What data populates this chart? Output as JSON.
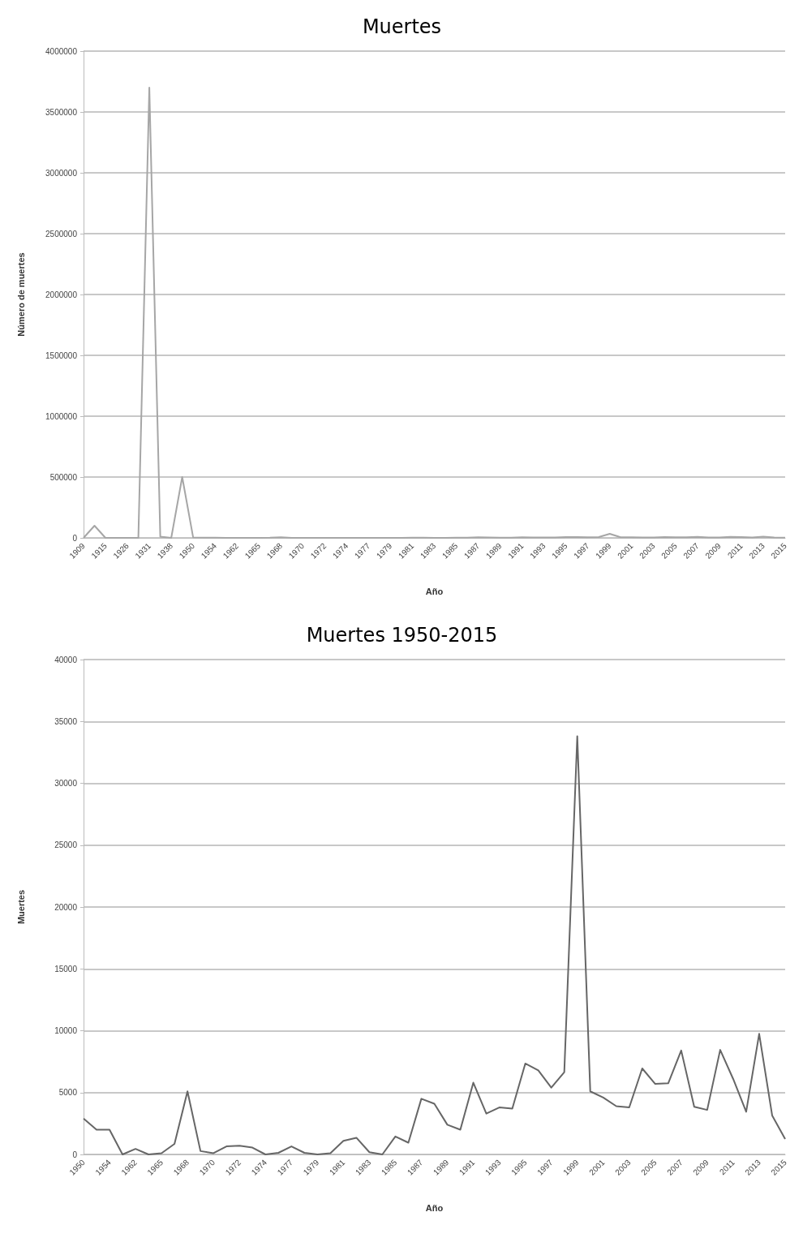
{
  "chart_data": [
    {
      "type": "line",
      "title": "Muertes",
      "xlabel": "Año",
      "ylabel": "Número de muertes",
      "categories": [
        "1909",
        null,
        "1915",
        null,
        "1926",
        null,
        "1931",
        null,
        "1938",
        null,
        "1950",
        null,
        "1954",
        null,
        "1962",
        null,
        "1965",
        null,
        "1968",
        null,
        "1970",
        null,
        "1972",
        null,
        "1974",
        null,
        "1977",
        null,
        "1979",
        null,
        "1981",
        null,
        "1983",
        null,
        "1985",
        null,
        "1987",
        null,
        "1989",
        null,
        "1991",
        null,
        "1993",
        null,
        "1995",
        null,
        "1997",
        null,
        "1999",
        null,
        "2001",
        null,
        "2003",
        null,
        "2005",
        null,
        "2007",
        null,
        "2009",
        null,
        "2011",
        null,
        "2013",
        null,
        "2015"
      ],
      "series": [
        {
          "color": "#a6a6a6",
          "values": [
            0,
            100000,
            0,
            0,
            0,
            0,
            3700000,
            10000,
            0,
            500000,
            2900,
            2000,
            2000,
            0,
            450,
            0,
            100,
            850,
            5100,
            270,
            100,
            650,
            700,
            550,
            0,
            130,
            650,
            130,
            0,
            100,
            1100,
            1350,
            180,
            0,
            1450,
            950,
            4500,
            4100,
            2400,
            2000,
            5800,
            3300,
            3800,
            3700,
            7350,
            6800,
            5400,
            6650,
            33800,
            5100,
            4600,
            3900,
            3800,
            6950,
            5700,
            5750,
            8400,
            3850,
            3600,
            8450,
            6100,
            3450,
            9750,
            3150,
            1250
          ]
        }
      ],
      "ylim": [
        0,
        4000000
      ],
      "yticks": [
        0,
        500000,
        1000000,
        1500000,
        2000000,
        2500000,
        3000000,
        3500000,
        4000000
      ],
      "grid": "y",
      "marker": "none",
      "line_style": "solid"
    },
    {
      "type": "line",
      "title": "Muertes 1950-2015",
      "xlabel": "Año",
      "ylabel": "Muertes",
      "categories": [
        "1950",
        null,
        "1954",
        null,
        "1962",
        null,
        "1965",
        null,
        "1968",
        null,
        "1970",
        null,
        "1972",
        null,
        "1974",
        null,
        "1977",
        null,
        "1979",
        null,
        "1981",
        null,
        "1983",
        null,
        "1985",
        null,
        "1987",
        null,
        "1989",
        null,
        "1991",
        null,
        "1993",
        null,
        "1995",
        null,
        "1997",
        null,
        "1999",
        null,
        "2001",
        null,
        "2003",
        null,
        "2005",
        null,
        "2007",
        null,
        "2009",
        null,
        "2011",
        null,
        "2013",
        null,
        "2015"
      ],
      "series": [
        {
          "color": "#666666",
          "values": [
            2900,
            2000,
            2000,
            0,
            450,
            0,
            100,
            850,
            5100,
            270,
            100,
            650,
            700,
            550,
            0,
            130,
            650,
            130,
            0,
            100,
            1100,
            1350,
            180,
            0,
            1450,
            950,
            4500,
            4100,
            2400,
            2000,
            5800,
            3300,
            3800,
            3700,
            7350,
            6800,
            5400,
            6650,
            33800,
            5100,
            4600,
            3900,
            3800,
            6950,
            5700,
            5750,
            8400,
            3850,
            3600,
            8450,
            6100,
            3450,
            9750,
            3150,
            1250
          ]
        }
      ],
      "ylim": [
        0,
        40000
      ],
      "yticks": [
        0,
        5000,
        10000,
        15000,
        20000,
        25000,
        30000,
        35000,
        40000
      ],
      "grid": "y",
      "marker": "none",
      "line_style": "solid"
    }
  ]
}
